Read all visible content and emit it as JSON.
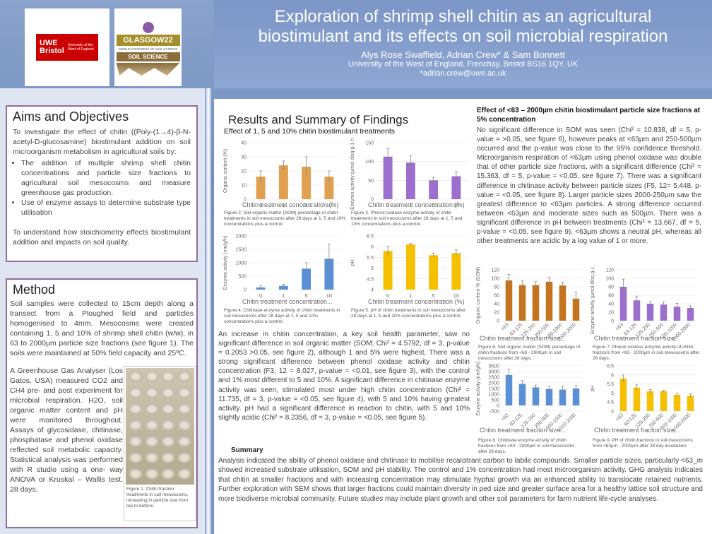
{
  "header": {
    "title_line1": "Exploration of shrimp shell chitin as an agricultural",
    "title_line2": "biostimulant and its effects on soil microbial respiration",
    "authors": "Alys Rose Swaffield, Adrian Crew* & Sam Bonnett",
    "affiliation": "University of the West of England, Frenchay, Bristol BS16 1QY, UK",
    "email": "*adrian.crew@uwe.ac.uk"
  },
  "logos": {
    "uwe_main": "UWE Bristol",
    "uwe_sub": "University of the West of England",
    "glasgow_top": "GLASGOW22",
    "glasgow_mid": "WORLD CONGRESS OF SOIL SCIENCE",
    "glasgow_bottom": "SOIL SCIENCE"
  },
  "aims": {
    "heading": "Aims and Objectives",
    "intro": "To investigate the effect of chitin ((Poly-(1→4)-β-N-acetyl-D-glucosamine) biostimulant addition on soil microorganism metabolism in agricultural soils by:",
    "bullets": [
      "The addition of multiple shrimp shell chitin concentrations and particle size fractions to agricultural soil mesocosms and measure greenhouse gas production.",
      "Use of enzyme assays to determine substrate type utilisation"
    ],
    "outro": "To understand how stoichiometry effects biostimulant addition and impacts on soil quality."
  },
  "method": {
    "heading": "Method",
    "para1": "Soil samples were collected to 15cm depth along a transect from a Ploughed field and particles homogenised to 4mm. Mesocosms were created containing 1, 5 and 10% of shrimp shell chitin (w/w), in 63 to 2000µm particle size fractions (see figure 1). The soils were maintained at 50% field capacity and 25ºC.",
    "para2": "A Greenhouse Gas Analyser (Los Gatos, USA) measured CO2 and CH4 pre- and post experiment for microbial respiration. H2O, soil organic matter content and pH were monitored throughout. Assays of glycosidase, chitinase, phosphatase and phenol oxidase reflected soil metabolic capacity. Statistical analysis was performed with R studio using a one- way ANOVA or Kruskal – Wallis test. 28 days,",
    "fig1_caption": "Figure 1. Chitin fraction treatments in soil mesocosms, increasing in particle size from top to bottom."
  },
  "results": {
    "heading": "Results and Summary of Findings",
    "sub1": "Effect of 1, 5 and 10% chitin biostimulant treatments",
    "sub2": "Effect of  <63 – 2000µm chitin biostimulant particle size fractions at 5% concentration",
    "para_right": "No significant difference in SOM was seen (Chi² = 10.838, df = 5, p-value = >0.05, see figure 6), however peaks at <63µm and 250-500µm occurred and the p-value was close to the 95% confidence threshold. Microorganism respiration of <63µm using phenol oxidase was double that of other particle size fractions, with a significant difference (Chi² = 15.363, df = 5, p-value = <0.05, see figure 7). There was a significant difference in chitinase activity between particle sizes (F5, 12= 5.448, p-value = <0.05, see figure 8). Larger particle sizes 2000-250µm saw the greatest difference to <63µm particles. A strong difference occurred between <63µm and moderate sizes such as 500µm. There was a significant difference in pH between treatments (Chi² = 13.667, df = 5, p-value = <0.05, see figure 9). <63µm shows a neutral pH, whereas all other treatments are acidic by a log value of 1 or more.",
    "para_mid": "An increase in chitin concentration, a key soil health parameter, saw no significant difference in soil organic matter (SOM; Chi² = 4.5792, df = 3, p-value = 0.2053 >0.05, see figure 2), although 1 and 5% were highest. There was a strong significant difference between phenol oxidase activity and chitin concentration (F3, 12 = 8.027, p-value = <0.01, see figure 3), with the control and 1% most different to 5 and 10%. A significant difference in chitinase enzyme activity was seen, stimulated most under high chitin concentration (Chi² = 11.735, df = 3, p-value = <0.05, see figure 4), with 5 and 10% having greatest activity. pH had a significant difference in reaction to chitin, with 5 and 10% slightly acidic (Chi² = 8.2356, df = 3, p-value = <0.05, see figure 5).",
    "summary_heading": "Summary",
    "summary": "Analysis indicated the ability of phenol oxidase and chitinase to mobilise recalcitrant carbon to labile compounds. Smaller particle sizes, particularly <63_m showed increased substrate utilisation, SOM and pH stability. The control and 1% concentration had most microorganism activity. GHG analysis indicates that chitin at smaller fractions and with increasing concentration may stimulate hyphal growth via an enhanced ability to translocate retained nutrients. Further exploration with SEM shows that larger fractions could maintain diversity in ped size and greater surface area for a healthy lattice soil structure and more biodiverse microbial community. Future studies may include plant growth and other soil parameters for farm nutrient life-cycle analyses."
  },
  "captions": {
    "fig2": "Figure 2. Soil organic matter (SOM) percentage of chitin treatments in soil mesocosms after 28 days at 1, 5 and 10% concentrations plus a control.",
    "fig3": "Figure 3. Phenol oxidase enzyme activity of chitin treatments in soil mesocosms after 28 days at 1, 5 and 10% concentrations plus a control.",
    "fig4": "Figure 4. Chitinase enzyme activity of chitin treatments in soil mesocosms after 28 days at 1, 5 and 10% concentrations plus a control.",
    "fig5": "Figure 5. pH of chitin treatments in soil mesocosms after 28 days at 1, 5 and 10% concentrations plus a control.",
    "fig6": "Figure 6. Soil organic matter (SOM) percentage of chitin fractions from <63 - 2000µm in soil mesocosms after 28 days.",
    "fig7": "Figure 7. Phenol oxidase enzyme activity of chitin fractions from <63 - 2000µm in soil mesocosms after 28 days.",
    "fig8": "Figure 8. Chitinase enzyme activity of chitin fractions from <63 - 2000µm in soil mesocosms after 28 days.",
    "fig9": "Figure 9. PH of chitin fractions in soil mesocosms from <63µm - 2000µm after 28 day incubation."
  },
  "chart_data": [
    {
      "id": "fig2",
      "type": "bar",
      "color": "#e0a050",
      "categories": [
        "0",
        "1",
        "5",
        "10"
      ],
      "values": [
        16,
        24,
        23,
        16
      ],
      "errors": [
        4,
        3,
        7,
        4
      ],
      "ylim": [
        0,
        40
      ],
      "yticks": [
        0,
        10,
        20,
        30,
        40
      ],
      "ylabel": "Organic content (%)",
      "xlabel": "Chitin treatment concentration (%)"
    },
    {
      "id": "fig3",
      "type": "bar",
      "color": "#9c6fce",
      "categories": [
        "0",
        "1",
        "5",
        "10"
      ],
      "values": [
        113,
        97,
        50,
        61
      ],
      "errors": [
        22,
        18,
        8,
        12
      ],
      "ylim": [
        0,
        150
      ],
      "yticks": [
        0,
        50,
        100,
        150
      ],
      "ylabel": "Enzyme activity (µmol dloq g-1 h-1)",
      "xlabel": "Chitin treatment concentration (%)"
    },
    {
      "id": "fig4",
      "type": "bar",
      "color": "#5b8fd6",
      "categories": [
        "0",
        "1",
        "5",
        "10"
      ],
      "values": [
        80,
        140,
        780,
        1150
      ],
      "errors": [
        60,
        60,
        220,
        550
      ],
      "ylim": [
        0,
        2000
      ],
      "yticks": [
        0,
        500,
        1000,
        1500,
        2000
      ],
      "ylabel": "Enzyme activity (nm/g/h)",
      "xlabel": "Chitin treatment concentration..."
    },
    {
      "id": "fig5",
      "type": "bar",
      "color": "#f5c000",
      "categories": [
        "0",
        "1",
        "5",
        "10"
      ],
      "values": [
        5.8,
        6.1,
        5.6,
        5.7
      ],
      "errors": [
        0.2,
        0.05,
        0.1,
        0.15
      ],
      "ylim": [
        4,
        6.5
      ],
      "yticks": [
        4,
        4.5,
        5,
        5.5,
        6,
        6.5
      ],
      "ylabel": "pH",
      "xlabel": "Chitin treatment concentration (%)"
    },
    {
      "id": "fig6",
      "type": "bar",
      "color": "#c4731e",
      "categories": [
        "<63",
        "63-125",
        "125-250",
        "250-500",
        "500-1000",
        "1000-2000"
      ],
      "values": [
        95,
        84,
        84,
        92,
        83,
        52
      ],
      "errors": [
        14,
        10,
        8,
        10,
        8,
        15
      ],
      "ylim": [
        0,
        120
      ],
      "yticks": [
        0,
        20,
        40,
        60,
        80,
        100,
        120
      ],
      "ylabel": "Organic content % (SOM)",
      "xlabel": "Chitin treatment fraction size..."
    },
    {
      "id": "fig7",
      "type": "bar",
      "color": "#9c6fce",
      "categories": [
        "<63",
        "63-125",
        "125-250",
        "250-500",
        "500-1000",
        "1000-2000"
      ],
      "values": [
        80,
        48,
        40,
        38,
        33,
        30
      ],
      "errors": [
        18,
        10,
        5,
        6,
        8,
        5
      ],
      "ylim": [
        0,
        120
      ],
      "yticks": [
        0,
        20,
        40,
        60,
        80,
        100,
        120
      ],
      "ylabel": "Enzyme activity (µmol dloq g-1 h-1)",
      "xlabel": "Chitin treatment fraction size..."
    },
    {
      "id": "fig8",
      "type": "bar",
      "color": "#5b8fd6",
      "categories": [
        "<63",
        "63-125",
        "125-250",
        "250-500",
        "500-1000",
        "1000-2000"
      ],
      "values": [
        2700,
        1900,
        1600,
        1450,
        1400,
        1500
      ],
      "errors": [
        500,
        300,
        200,
        250,
        300,
        250
      ],
      "ylim": [
        -500,
        3500
      ],
      "yticks": [
        -500,
        0,
        500,
        1000,
        1500,
        2000,
        2500,
        3000,
        3500
      ],
      "ylabel": "Enzyme activity (nm/g/h)",
      "xlabel": "Chitin treatment fraction size..."
    },
    {
      "id": "fig9",
      "type": "bar",
      "color": "#f5c000",
      "categories": [
        "<63",
        "63-125",
        "125-250",
        "250-500",
        "500-1000",
        "1000-2000"
      ],
      "values": [
        5.8,
        5.3,
        5.1,
        5.1,
        4.9,
        4.85
      ],
      "errors": [
        0.2,
        0.15,
        0.1,
        0.05,
        0.1,
        0.1
      ],
      "ylim": [
        4,
        6.5
      ],
      "yticks": [
        4,
        4.5,
        5,
        5.5,
        6,
        6.5
      ],
      "ylabel": "pH",
      "xlabel": "Chitin treatment fraction size..."
    }
  ]
}
